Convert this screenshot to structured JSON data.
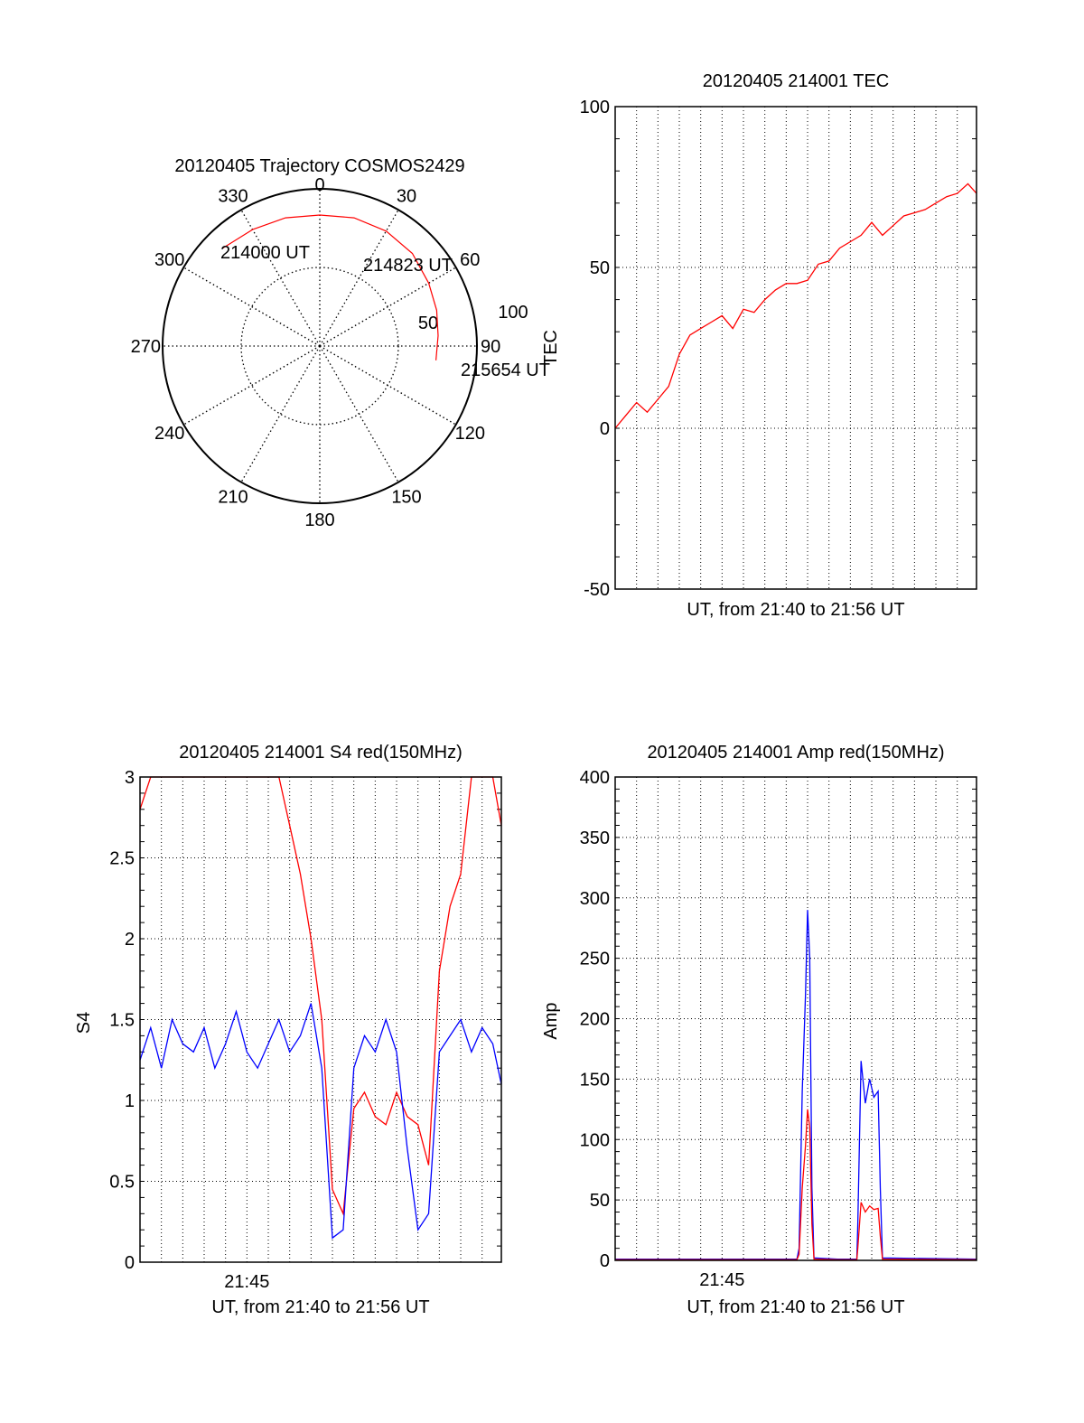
{
  "chart_data": [
    {
      "type": "polar",
      "title": "20120405 Trajectory COSMOS2429",
      "angle_labels": [
        "0",
        "30",
        "60",
        "90",
        "120",
        "150",
        "180",
        "210",
        "240",
        "270",
        "300",
        "330"
      ],
      "radial_labels": [
        "50",
        "100"
      ],
      "trajectory_color": "#ff0000",
      "trajectory": [
        {
          "azimuth": 315,
          "elevation": 11
        },
        {
          "azimuth": 330,
          "elevation": 13
        },
        {
          "azimuth": 345,
          "elevation": 14
        },
        {
          "azimuth": 0,
          "elevation": 15
        },
        {
          "azimuth": 15,
          "elevation": 14
        },
        {
          "azimuth": 30,
          "elevation": 14
        },
        {
          "azimuth": 45,
          "elevation": 15
        },
        {
          "azimuth": 60,
          "elevation": 18
        },
        {
          "azimuth": 73,
          "elevation": 20
        },
        {
          "azimuth": 85,
          "elevation": 22
        },
        {
          "azimuth": 97,
          "elevation": 23
        }
      ],
      "annotations": [
        "214000 UT",
        "214823 UT",
        "215654 UT"
      ]
    },
    {
      "type": "line",
      "title": "20120405 214001 TEC",
      "xlabel": "UT, from 21:40 to 21:56 UT",
      "ylabel": "TEC",
      "ylim": [
        -50,
        100
      ],
      "yticks": [
        "100",
        "50",
        "0",
        "-50"
      ],
      "xlim": [
        0,
        16.9
      ],
      "grid": true,
      "color": "#ff0000",
      "x": [
        0,
        0.5,
        1,
        1.5,
        2,
        2.5,
        3,
        3.5,
        4,
        4.5,
        5,
        5.5,
        6,
        6.5,
        7,
        7.5,
        8,
        8.5,
        9,
        9.5,
        10,
        10.5,
        11,
        11.5,
        12,
        12.5,
        13,
        13.5,
        14,
        14.5,
        15,
        15.5,
        16,
        16.5,
        16.9
      ],
      "values": [
        0,
        4,
        8,
        5,
        9,
        13,
        23,
        29,
        31,
        33,
        35,
        31,
        37,
        36,
        40,
        43,
        45,
        45,
        46,
        51,
        52,
        56,
        58,
        60,
        64,
        60,
        63,
        66,
        67,
        68,
        70,
        72,
        73,
        76,
        73
      ]
    },
    {
      "type": "line",
      "title": "20120405 214001 S4 red(150MHz)",
      "xlabel": "UT, from 21:40 to 21:56 UT",
      "ylabel": "S4",
      "ylim": [
        0,
        3
      ],
      "yticks": [
        "3",
        "2.5",
        "2",
        "1.5",
        "1",
        "0.5",
        "0"
      ],
      "xtick_label": "21:45",
      "xtick_value": 5,
      "xlim": [
        0,
        16.9
      ],
      "grid": true,
      "series": [
        {
          "color": "#ff0000",
          "x": [
            0,
            0.5,
            1,
            1.5,
            2,
            2.5,
            3,
            3.5,
            4,
            4.5,
            5,
            5.5,
            6,
            6.5,
            7,
            7.5,
            8,
            8.5,
            9,
            9.5,
            10,
            10.5,
            11,
            11.5,
            12,
            12.5,
            13,
            13.5,
            14,
            14.5,
            15,
            15.5,
            16,
            16.5,
            16.9
          ],
          "values": [
            2.8,
            3,
            3,
            3,
            3,
            3,
            3,
            3,
            3,
            3,
            3,
            3,
            3,
            3,
            2.7,
            2.4,
            2.0,
            1.5,
            0.45,
            0.3,
            0.95,
            1.05,
            0.9,
            0.85,
            1.05,
            0.9,
            0.85,
            0.6,
            1.8,
            2.2,
            2.4,
            3,
            3,
            3,
            2.7
          ]
        },
        {
          "color": "#0000ff",
          "x": [
            0,
            0.5,
            1,
            1.5,
            2,
            2.5,
            3,
            3.5,
            4,
            4.5,
            5,
            5.5,
            6,
            6.5,
            7,
            7.5,
            8,
            8.5,
            9,
            9.5,
            10,
            10.5,
            11,
            11.5,
            12,
            12.5,
            13,
            13.5,
            14,
            14.5,
            15,
            15.5,
            16,
            16.5,
            16.9
          ],
          "values": [
            1.25,
            1.45,
            1.2,
            1.5,
            1.35,
            1.3,
            1.45,
            1.2,
            1.35,
            1.55,
            1.3,
            1.2,
            1.35,
            1.5,
            1.3,
            1.4,
            1.6,
            1.2,
            0.15,
            0.2,
            1.2,
            1.4,
            1.3,
            1.5,
            1.3,
            0.7,
            0.2,
            0.3,
            1.3,
            1.4,
            1.5,
            1.3,
            1.45,
            1.35,
            1.1
          ]
        }
      ]
    },
    {
      "type": "line",
      "title": "20120405 214001 Amp red(150MHz)",
      "xlabel": "UT, from 21:40 to 21:56 UT",
      "ylabel": "Amp",
      "ylim": [
        0,
        400
      ],
      "yticks": [
        "400",
        "350",
        "300",
        "250",
        "200",
        "150",
        "100",
        "50",
        "0"
      ],
      "xtick_label": "21:45",
      "xtick_value": 5,
      "xlim": [
        0,
        16.9
      ],
      "grid": true,
      "series": [
        {
          "color": "#0000ff",
          "x": [
            0,
            8.5,
            8.6,
            8.75,
            8.9,
            9.0,
            9.1,
            9.2,
            9.3,
            10.4,
            11.3,
            11.35,
            11.5,
            11.7,
            11.9,
            12.1,
            12.3,
            12.4,
            12.5,
            16.9
          ],
          "values": [
            1,
            1,
            10,
            140,
            220,
            290,
            250,
            60,
            2,
            1,
            1,
            30,
            165,
            130,
            150,
            135,
            140,
            60,
            2,
            1
          ]
        },
        {
          "color": "#ff0000",
          "x": [
            0,
            8.5,
            8.6,
            8.75,
            8.9,
            9.0,
            9.1,
            9.2,
            9.3,
            10.4,
            11.3,
            11.35,
            11.5,
            11.7,
            11.9,
            12.1,
            12.3,
            12.4,
            12.5,
            16.9
          ],
          "values": [
            0.5,
            0.5,
            5,
            60,
            95,
            125,
            110,
            30,
            1,
            0.5,
            0.5,
            10,
            48,
            40,
            45,
            42,
            43,
            20,
            1,
            0.5
          ]
        }
      ]
    }
  ]
}
